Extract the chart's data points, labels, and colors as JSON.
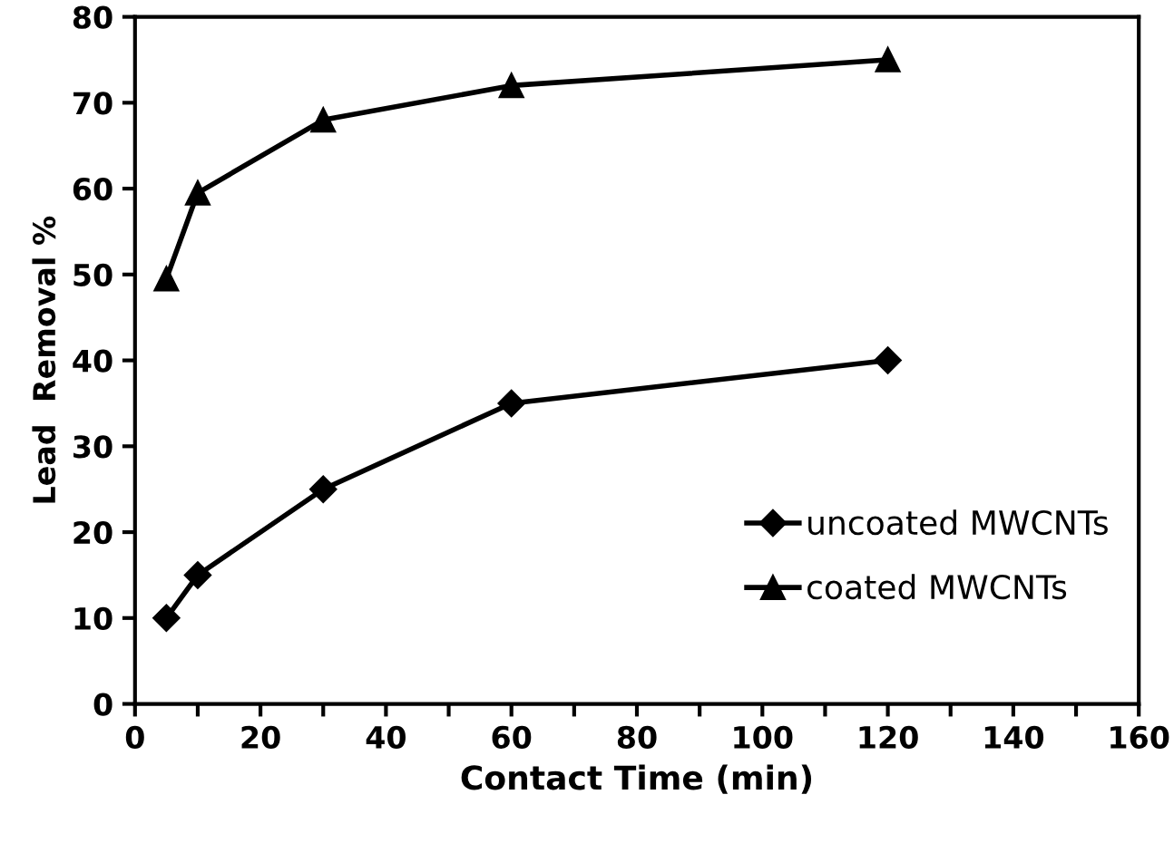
{
  "chart_data": {
    "type": "line",
    "xlabel": "Contact Time (min)",
    "ylabel": "Lead  Removal %",
    "x": [
      5,
      10,
      30,
      60,
      120
    ],
    "series": [
      {
        "name": "uncoated MWCNTs",
        "color": "#000000",
        "marker": "diamond",
        "values": [
          10,
          15,
          25,
          35,
          40
        ]
      },
      {
        "name": "coated MWCNTs",
        "color": "#000000",
        "marker": "triangle",
        "values": [
          49.5,
          59.5,
          68,
          72,
          75
        ]
      }
    ],
    "xlim": [
      0,
      160
    ],
    "ylim": [
      0,
      80
    ],
    "xticks": [
      0,
      {
        "value": 10,
        "label": null
      },
      20,
      {
        "value": 30,
        "label": null
      },
      40,
      {
        "value": 50,
        "label": null
      },
      60,
      {
        "value": 70,
        "label": null
      },
      80,
      {
        "value": 90,
        "label": null
      },
      100,
      {
        "value": 110,
        "label": null
      },
      120,
      {
        "value": 130,
        "label": null
      },
      140,
      {
        "value": 150,
        "label": null
      },
      160
    ],
    "yticks": [
      0,
      10,
      20,
      30,
      40,
      50,
      60,
      70,
      80
    ],
    "grid": false,
    "legend": "bottom right",
    "line_style": "solid"
  }
}
